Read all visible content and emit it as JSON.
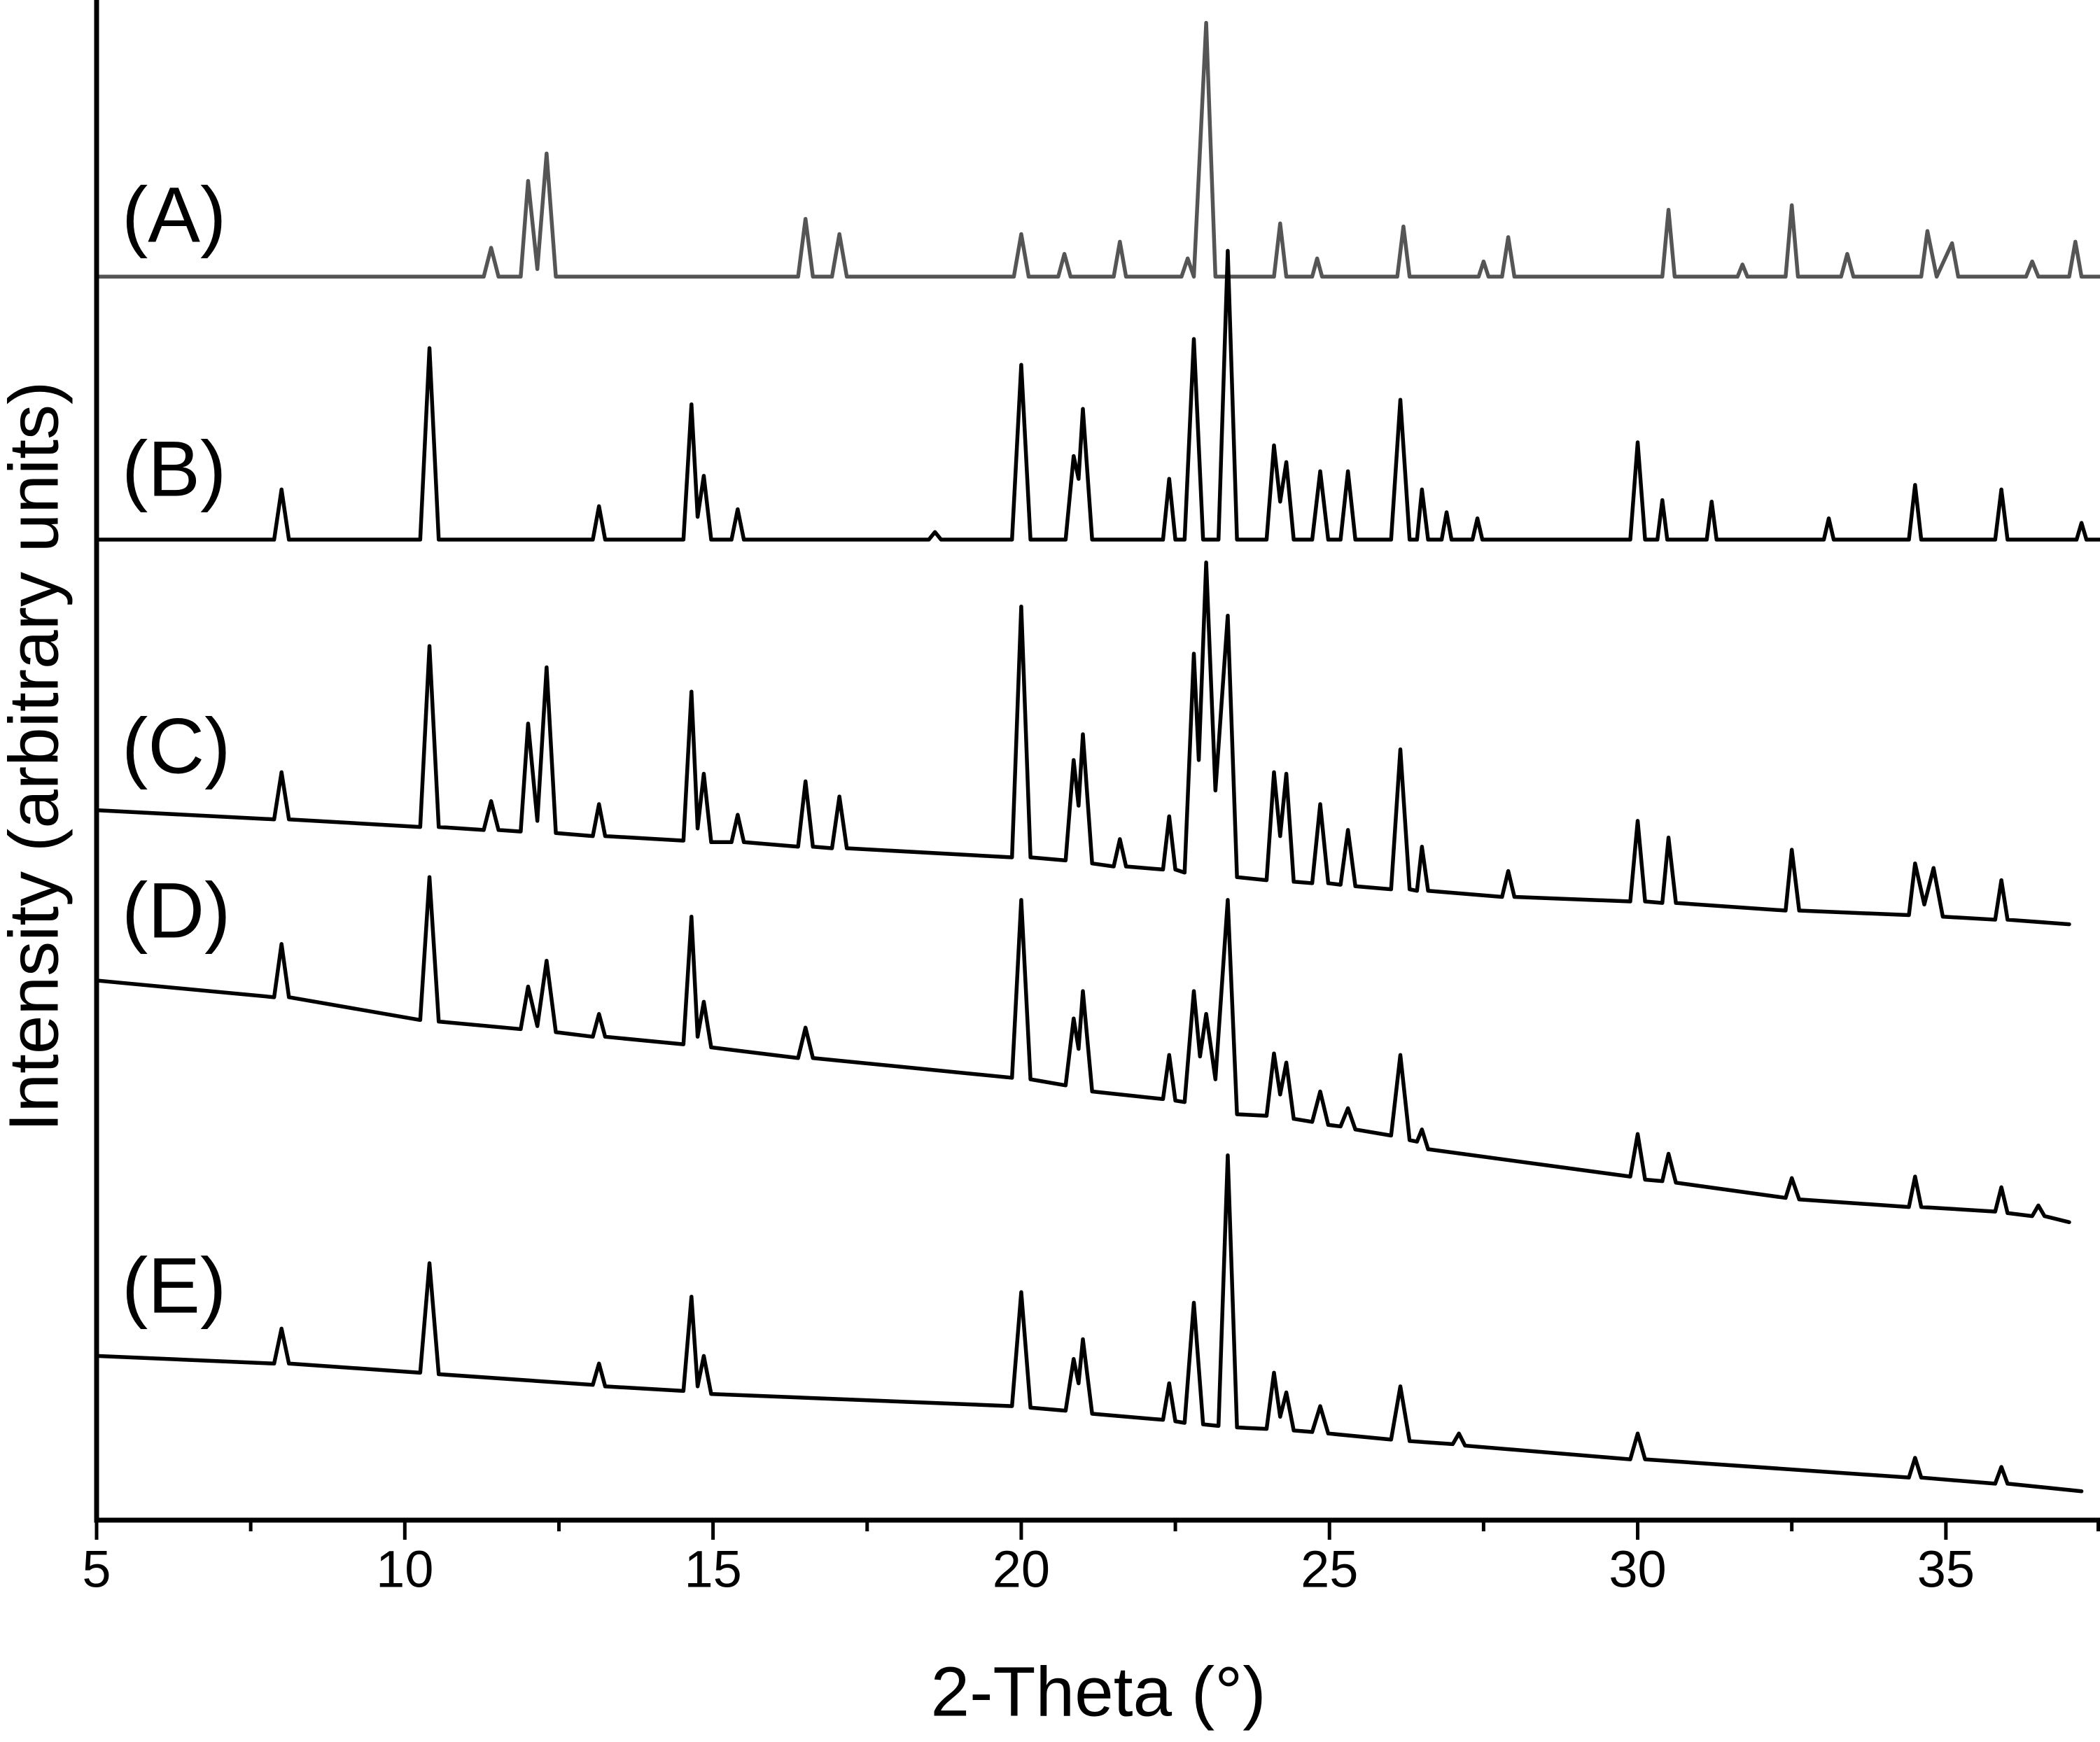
{
  "chart_data": {
    "type": "line",
    "xlabel": "2-Theta (°)",
    "ylabel": "Intensity (arbitrary units)",
    "xlim": [
      5,
      37.5
    ],
    "ylim": [
      0,
      100
    ],
    "xticks": [
      5,
      10,
      15,
      20,
      25,
      30,
      35
    ],
    "xminorticks": [
      7.5,
      12.5,
      17.5,
      22.5,
      27.5,
      32.5,
      37.5
    ],
    "grid": false,
    "series": [
      {
        "name": "(A)",
        "color": "#555555",
        "x": [
          5,
          11.28,
          11.4,
          11.52,
          11.88,
          12.0,
          12.15,
          12.3,
          12.45,
          16.38,
          16.5,
          16.62,
          16.93,
          17.05,
          17.17,
          19.88,
          20.0,
          20.12,
          20.6,
          20.7,
          20.8,
          21.5,
          21.6,
          21.7,
          22.6,
          22.7,
          22.8,
          23.0,
          23.15,
          24.1,
          24.2,
          24.3,
          24.72,
          24.8,
          24.88,
          26.1,
          26.2,
          26.3,
          27.42,
          27.5,
          27.58,
          27.8,
          27.9,
          28.0,
          30.4,
          30.5,
          30.6,
          31.62,
          31.7,
          31.78,
          32.4,
          32.5,
          32.6,
          33.3,
          33.4,
          33.5,
          34.6,
          34.7,
          34.85,
          35.1,
          35.2,
          36.3,
          36.4,
          36.5,
          37.0,
          37.1,
          37.2,
          37.5
        ],
        "values": [
          81.8,
          81.8,
          83.7,
          81.8,
          81.8,
          88.1,
          82.3,
          89.9,
          81.8,
          81.8,
          85.6,
          81.8,
          81.8,
          84.6,
          81.8,
          81.8,
          84.6,
          81.8,
          81.8,
          83.3,
          81.8,
          81.8,
          84.1,
          81.8,
          81.8,
          83.0,
          81.8,
          98.5,
          81.8,
          81.8,
          85.3,
          81.8,
          81.8,
          83.0,
          81.8,
          81.8,
          85.1,
          81.8,
          81.8,
          82.8,
          81.8,
          81.8,
          84.4,
          81.8,
          81.8,
          86.2,
          81.8,
          81.8,
          82.6,
          81.8,
          81.8,
          86.5,
          81.8,
          81.8,
          83.3,
          81.8,
          81.8,
          84.8,
          81.8,
          84.0,
          81.8,
          81.8,
          82.8,
          81.8,
          81.8,
          84.1,
          81.8,
          81.8
        ]
      },
      {
        "name": "(B)",
        "color": "#000000",
        "x": [
          5,
          7.88,
          8.0,
          8.12,
          10.25,
          10.4,
          10.55,
          13.05,
          13.15,
          13.25,
          14.52,
          14.65,
          14.75,
          14.85,
          14.97,
          15.3,
          15.4,
          15.5,
          18.5,
          18.6,
          18.7,
          19.85,
          20.0,
          20.15,
          20.72,
          20.85,
          20.93,
          21.0,
          21.15,
          22.3,
          22.4,
          22.5,
          22.65,
          22.8,
          22.95,
          23.2,
          23.35,
          23.5,
          23.98,
          24.1,
          24.2,
          24.3,
          24.42,
          24.72,
          24.85,
          24.98,
          25.18,
          25.3,
          25.42,
          26.0,
          26.15,
          26.3,
          26.42,
          26.5,
          26.6,
          26.82,
          26.9,
          26.98,
          27.32,
          27.4,
          27.48,
          29.88,
          30.0,
          30.12,
          30.32,
          30.4,
          30.48,
          31.12,
          31.2,
          31.28,
          33.02,
          33.1,
          33.18,
          34.4,
          34.5,
          34.6,
          35.8,
          35.9,
          36.0,
          37.12,
          37.2,
          37.28,
          37.5
        ],
        "values": [
          64.5,
          64.5,
          67.8,
          64.5,
          64.5,
          77.1,
          64.5,
          64.5,
          66.7,
          64.5,
          64.5,
          73.4,
          66.0,
          68.7,
          64.5,
          64.5,
          66.5,
          64.5,
          64.5,
          65.0,
          64.5,
          64.5,
          76.0,
          64.5,
          64.5,
          70.0,
          68.5,
          73.1,
          64.5,
          64.5,
          68.5,
          64.5,
          64.5,
          77.7,
          64.5,
          64.5,
          83.5,
          64.5,
          64.5,
          70.7,
          67.0,
          69.6,
          64.5,
          64.5,
          69.0,
          64.5,
          64.5,
          69.0,
          64.5,
          64.5,
          73.7,
          64.5,
          64.5,
          67.8,
          64.5,
          64.5,
          66.3,
          64.5,
          64.5,
          65.9,
          64.5,
          64.5,
          70.9,
          64.5,
          64.5,
          67.1,
          64.5,
          64.5,
          67.0,
          64.5,
          64.5,
          65.9,
          64.5,
          64.5,
          68.1,
          64.5,
          64.5,
          67.8,
          64.5,
          64.5,
          65.6,
          64.5,
          64.5
        ]
      },
      {
        "name": "(C)",
        "color": "#000000",
        "x": [
          5,
          7.88,
          8.0,
          8.12,
          10.25,
          10.4,
          10.55,
          11.28,
          11.4,
          11.52,
          11.88,
          12.0,
          12.15,
          12.3,
          12.45,
          13.05,
          13.15,
          13.25,
          14.52,
          14.65,
          14.75,
          14.85,
          14.97,
          15.3,
          15.4,
          15.5,
          16.38,
          16.5,
          16.62,
          16.93,
          17.05,
          17.17,
          19.85,
          20.0,
          20.15,
          20.72,
          20.85,
          20.93,
          21.0,
          21.15,
          21.5,
          21.6,
          21.7,
          22.3,
          22.4,
          22.5,
          22.65,
          22.8,
          22.88,
          23.0,
          23.15,
          23.35,
          23.5,
          23.98,
          24.1,
          24.2,
          24.3,
          24.42,
          24.72,
          24.85,
          24.98,
          25.18,
          25.3,
          25.42,
          26.0,
          26.15,
          26.3,
          26.42,
          26.5,
          26.6,
          27.8,
          27.9,
          28.0,
          29.88,
          30.0,
          30.12,
          30.4,
          30.5,
          30.62,
          32.4,
          32.5,
          32.62,
          34.4,
          34.5,
          34.65,
          34.8,
          34.95,
          35.8,
          35.9,
          36.0,
          37.0
        ],
        "values": [
          46.7,
          46.1,
          49.2,
          46.1,
          45.6,
          57.5,
          45.6,
          45.4,
          47.3,
          45.4,
          45.3,
          52.4,
          46.0,
          56.1,
          45.2,
          45.0,
          47.1,
          45.0,
          44.7,
          54.5,
          45.5,
          49.1,
          44.6,
          44.6,
          46.4,
          44.6,
          44.3,
          48.6,
          44.3,
          44.2,
          47.6,
          44.2,
          43.6,
          60.1,
          43.6,
          43.4,
          50.0,
          47.0,
          51.7,
          43.2,
          43.0,
          44.8,
          43.0,
          42.8,
          46.3,
          42.8,
          42.6,
          57.0,
          50.0,
          63.0,
          48.0,
          59.5,
          42.3,
          42.1,
          49.2,
          45.0,
          49.1,
          42.0,
          41.9,
          47.1,
          41.9,
          41.8,
          45.4,
          41.7,
          41.5,
          50.7,
          41.5,
          41.4,
          44.3,
          41.4,
          41.0,
          42.7,
          41.0,
          40.7,
          46.0,
          40.7,
          40.6,
          44.9,
          40.6,
          40.1,
          44.1,
          40.1,
          39.8,
          43.2,
          40.5,
          42.9,
          39.7,
          39.5,
          42.1,
          39.5,
          39.2
        ]
      },
      {
        "name": "(D)",
        "color": "#000000",
        "x": [
          5,
          7.88,
          8.0,
          8.12,
          10.25,
          10.4,
          10.55,
          11.88,
          12.0,
          12.15,
          12.3,
          12.45,
          13.05,
          13.15,
          13.25,
          14.52,
          14.65,
          14.75,
          14.85,
          14.97,
          16.38,
          16.5,
          16.62,
          19.85,
          20.0,
          20.15,
          20.72,
          20.85,
          20.93,
          21.0,
          21.15,
          22.3,
          22.4,
          22.5,
          22.65,
          22.8,
          22.9,
          23.0,
          23.15,
          23.35,
          23.5,
          23.98,
          24.1,
          24.2,
          24.3,
          24.42,
          24.72,
          24.85,
          24.98,
          25.18,
          25.3,
          25.42,
          26.0,
          26.15,
          26.3,
          26.42,
          26.5,
          26.6,
          29.88,
          30.0,
          30.12,
          30.4,
          30.5,
          30.62,
          32.4,
          32.5,
          32.62,
          34.4,
          34.5,
          34.6,
          35.8,
          35.9,
          36.0,
          36.4,
          36.5,
          36.6,
          37.0
        ],
        "values": [
          35.5,
          34.4,
          37.9,
          34.4,
          32.9,
          42.3,
          32.8,
          32.3,
          35.1,
          32.5,
          36.8,
          32.1,
          31.8,
          33.3,
          31.8,
          31.3,
          39.7,
          31.8,
          34.1,
          31.1,
          30.4,
          32.4,
          30.4,
          29.1,
          40.8,
          29.0,
          28.6,
          33.0,
          31.0,
          34.8,
          28.2,
          27.7,
          30.6,
          27.6,
          27.5,
          34.8,
          30.5,
          33.3,
          29.0,
          40.8,
          26.7,
          26.6,
          30.7,
          28.0,
          30.1,
          26.4,
          26.2,
          28.2,
          26.0,
          25.9,
          27.1,
          25.7,
          25.3,
          30.6,
          25.0,
          24.9,
          25.7,
          24.4,
          22.6,
          25.4,
          22.4,
          22.3,
          24.1,
          22.2,
          21.2,
          22.5,
          21.1,
          20.6,
          22.6,
          20.6,
          20.3,
          21.9,
          20.2,
          20.0,
          20.7,
          20.0,
          19.6
        ]
      },
      {
        "name": "(E)",
        "color": "#000000",
        "x": [
          5,
          7.88,
          8.0,
          8.12,
          10.25,
          10.4,
          10.55,
          13.05,
          13.15,
          13.25,
          14.52,
          14.65,
          14.75,
          14.85,
          14.97,
          19.85,
          20.0,
          20.15,
          20.72,
          20.85,
          20.93,
          21.0,
          21.15,
          22.3,
          22.4,
          22.5,
          22.65,
          22.8,
          22.95,
          23.2,
          23.35,
          23.5,
          23.98,
          24.1,
          24.2,
          24.3,
          24.42,
          24.72,
          24.85,
          24.98,
          26.0,
          26.15,
          26.3,
          27.0,
          27.1,
          27.2,
          29.88,
          30.0,
          30.12,
          34.4,
          34.5,
          34.6,
          35.8,
          35.9,
          36.0,
          37.2
        ],
        "values": [
          10.8,
          10.3,
          12.6,
          10.3,
          9.7,
          16.9,
          9.6,
          8.9,
          10.3,
          8.8,
          8.5,
          14.7,
          8.8,
          10.8,
          8.3,
          7.5,
          15.0,
          7.4,
          7.2,
          10.6,
          9.0,
          11.9,
          7.0,
          6.6,
          9.0,
          6.5,
          6.4,
          14.3,
          6.3,
          6.2,
          24.0,
          6.1,
          6.0,
          9.7,
          6.8,
          8.4,
          5.9,
          5.8,
          7.5,
          5.7,
          5.3,
          8.8,
          5.2,
          5.0,
          5.7,
          4.9,
          4.0,
          5.7,
          4.0,
          2.8,
          4.1,
          2.8,
          2.4,
          3.5,
          2.4,
          1.9
        ]
      }
    ]
  }
}
